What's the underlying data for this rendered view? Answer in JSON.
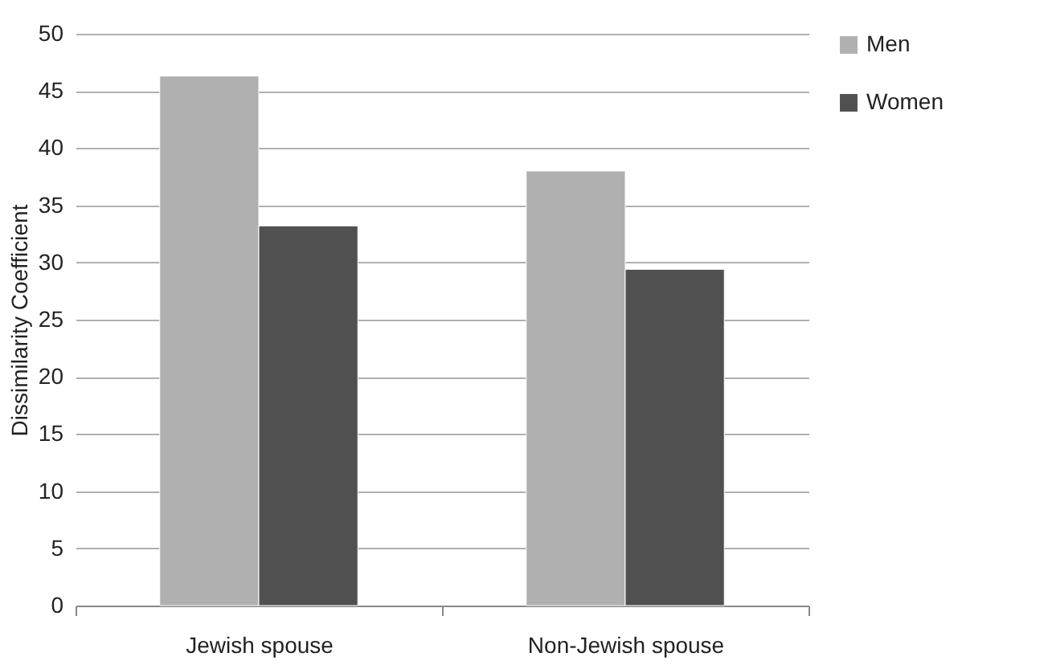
{
  "chart_data": {
    "type": "bar",
    "ylabel": "Dissimilarity Coefficient",
    "categories": [
      "Jewish spouse",
      "Non-Jewish spouse"
    ],
    "series": [
      {
        "name": "Men",
        "color": "#b0b0b0",
        "values": [
          46.3,
          38.0
        ]
      },
      {
        "name": "Women",
        "color": "#505050",
        "values": [
          33.2,
          29.4
        ]
      }
    ],
    "ylim": [
      0,
      50
    ],
    "yticks": [
      0,
      5,
      10,
      15,
      20,
      25,
      30,
      35,
      40,
      45,
      50
    ],
    "grid": "y",
    "legend": "right"
  }
}
